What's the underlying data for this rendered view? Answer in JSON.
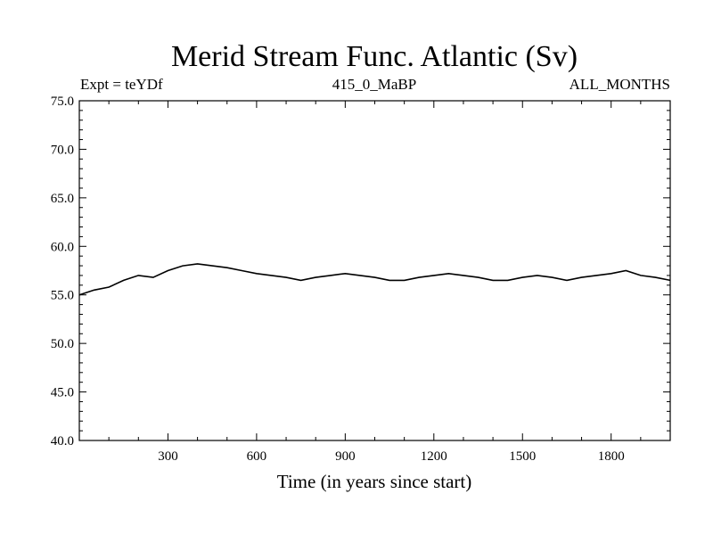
{
  "chart_data": {
    "type": "line",
    "title": "Merid Stream Func. Atlantic (Sv)",
    "subtitle_left": "Expt = teYDf",
    "subtitle_center": "415_0_MaBP",
    "subtitle_right": "ALL_MONTHS",
    "xlabel": "Time (in years since start)",
    "ylabel": "",
    "xlim": [
      0,
      2000
    ],
    "ylim": [
      40.0,
      75.0
    ],
    "x_ticks": [
      300,
      600,
      900,
      1200,
      1500,
      1800
    ],
    "y_ticks": [
      "40.0",
      "45.0",
      "50.0",
      "55.0",
      "60.0",
      "65.0",
      "70.0",
      "75.0"
    ],
    "grid": false,
    "series": [
      {
        "color": "#000000",
        "x": [
          0,
          50,
          100,
          150,
          200,
          250,
          300,
          350,
          400,
          450,
          500,
          550,
          600,
          650,
          700,
          750,
          800,
          850,
          900,
          950,
          1000,
          1050,
          1100,
          1150,
          1200,
          1250,
          1300,
          1350,
          1400,
          1450,
          1500,
          1550,
          1600,
          1650,
          1700,
          1750,
          1800,
          1850,
          1900,
          1950,
          2000
        ],
        "values": [
          55.0,
          55.5,
          55.8,
          56.5,
          57.0,
          56.8,
          57.5,
          58.0,
          58.2,
          58.0,
          57.8,
          57.5,
          57.2,
          57.0,
          56.8,
          56.5,
          56.8,
          57.0,
          57.2,
          57.0,
          56.8,
          56.5,
          56.5,
          56.8,
          57.0,
          57.2,
          57.0,
          56.8,
          56.5,
          56.5,
          56.8,
          57.0,
          56.8,
          56.5,
          56.8,
          57.0,
          57.2,
          57.5,
          57.0,
          56.8,
          56.5
        ]
      }
    ]
  }
}
